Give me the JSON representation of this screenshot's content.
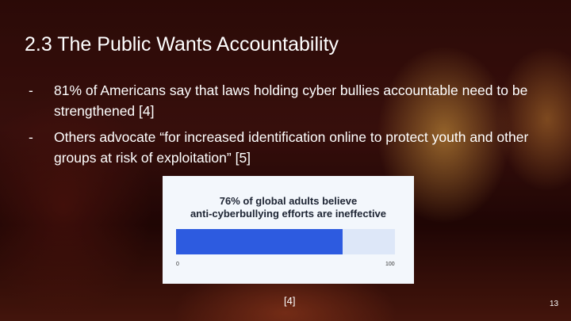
{
  "slide": {
    "title": "2.3 The Public Wants Accountability",
    "bullets": [
      {
        "marker": "-",
        "text": "81% of Americans say that laws holding cyber bullies accountable need to be strengthened [4]"
      },
      {
        "marker": "-",
        "text": "Others advocate “for increased identification online to protect youth and other groups at risk of exploitation” [5]"
      }
    ],
    "citation": "[4]",
    "page_number": "13"
  },
  "chart_data": {
    "type": "bar",
    "title_line1": "76% of global adults believe",
    "title_line2": "anti-cyberbullying efforts are ineffective",
    "values": [
      76
    ],
    "xlim": [
      0,
      100
    ],
    "tick_labels": [
      "0",
      "100"
    ],
    "colors": {
      "fill": "#2d5be0",
      "track": "#dde7f8",
      "background": "#f3f7fc"
    }
  }
}
